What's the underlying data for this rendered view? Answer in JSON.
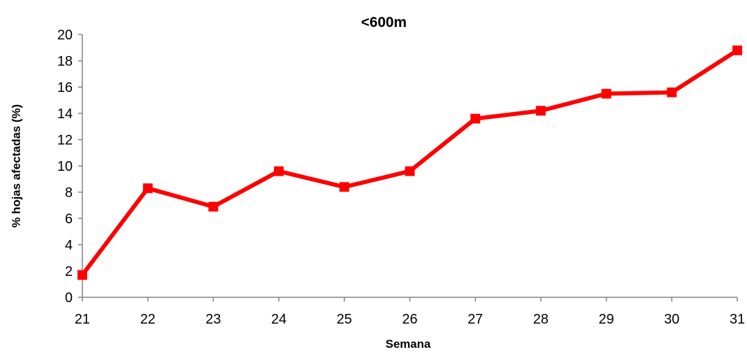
{
  "chart_data": {
    "type": "line",
    "title": "<600m",
    "xlabel": "Semana",
    "ylabel": "% hojas afectadas (%)",
    "x": [
      21,
      22,
      23,
      24,
      25,
      26,
      27,
      28,
      29,
      30,
      31
    ],
    "series": [
      {
        "name": "",
        "color": "#ff0000",
        "values": [
          1.7,
          8.3,
          6.9,
          9.6,
          8.4,
          9.6,
          13.6,
          14.2,
          15.5,
          15.6,
          18.8
        ]
      }
    ],
    "ylim": [
      0,
      20
    ],
    "yticks": [
      0,
      2,
      4,
      6,
      8,
      10,
      12,
      14,
      16,
      18,
      20
    ],
    "xtick_labels": [
      "21",
      "22",
      "23",
      "24",
      "25",
      "26",
      "27",
      "28",
      "29",
      "30",
      "31"
    ],
    "grid": false,
    "legend": "none",
    "marker": "square"
  }
}
